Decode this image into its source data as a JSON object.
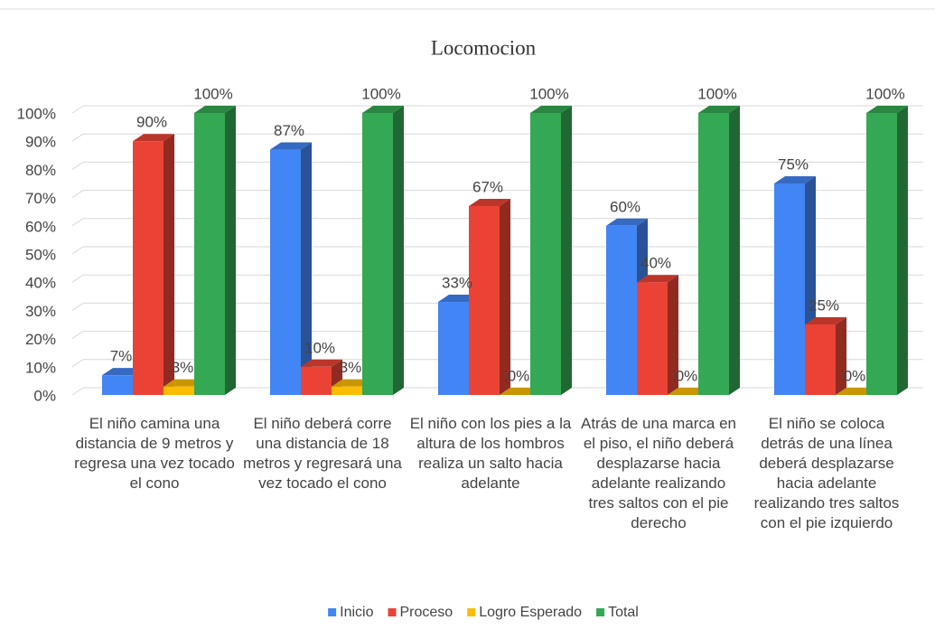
{
  "chart_data": {
    "type": "bar3d",
    "title": "Locomocion",
    "categories": [
      "El niño camina una distancia de 9 metros y regresa una vez tocado el cono",
      "El niño deberá corre una distancia de 18 metros y regresará una vez tocado el cono",
      "El niño con los pies a la altura de los hombros realiza un salto hacia adelante",
      "Atrás de una marca en el piso, el niño deberá desplazarse hacia adelante realizando tres saltos con el pie derecho",
      "El niño se coloca detrás de una línea deberá desplazarse hacia adelante realizando tres saltos con el pie izquierdo"
    ],
    "series": [
      {
        "name": "Inicio",
        "color": "#4285f4",
        "values": [
          7,
          87,
          33,
          60,
          75
        ],
        "value_labels": [
          "7%",
          "87%",
          "33%",
          "60%",
          "75%"
        ]
      },
      {
        "name": "Proceso",
        "color": "#ea4335",
        "values": [
          90,
          10,
          67,
          40,
          25
        ],
        "value_labels": [
          "90%",
          "10%",
          "67%",
          "40%",
          "25%"
        ]
      },
      {
        "name": "Logro Esperado",
        "color": "#fbbc04",
        "values": [
          3,
          3,
          0,
          0,
          0
        ],
        "value_labels": [
          "3%",
          "3%",
          "0%",
          "0%",
          "0%"
        ]
      },
      {
        "name": "Total",
        "color": "#34a853",
        "values": [
          100,
          100,
          100,
          100,
          100
        ],
        "value_labels": [
          "100%",
          "100%",
          "100%",
          "100%",
          "100%"
        ]
      }
    ],
    "ylim": [
      0,
      100
    ],
    "yticks": [
      {
        "value": 0,
        "label": "0%"
      },
      {
        "value": 10,
        "label": "10%"
      },
      {
        "value": 20,
        "label": "20%"
      },
      {
        "value": 30,
        "label": "30%"
      },
      {
        "value": 40,
        "label": "40%"
      },
      {
        "value": 50,
        "label": "50%"
      },
      {
        "value": 60,
        "label": "60%"
      },
      {
        "value": 70,
        "label": "70%"
      },
      {
        "value": 80,
        "label": "80%"
      },
      {
        "value": 90,
        "label": "90%"
      },
      {
        "value": 100,
        "label": "100%"
      }
    ],
    "grid": true,
    "legend": "bottom"
  }
}
